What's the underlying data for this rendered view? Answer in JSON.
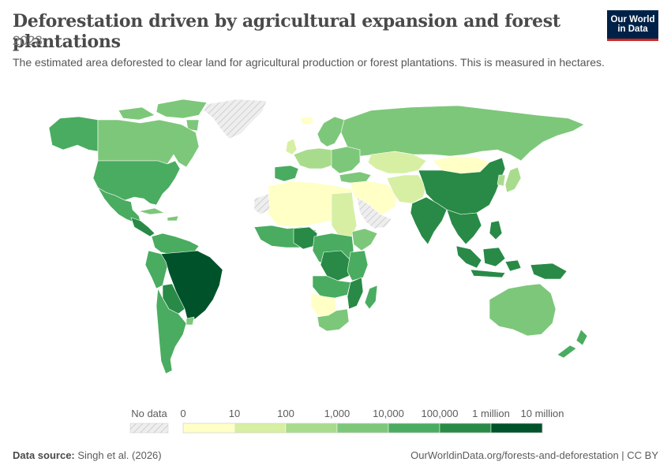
{
  "header": {
    "title": "Deforestation driven by agricultural expansion and forest plantations",
    "year": "2023",
    "subtitle": "The estimated area deforested to clear land for agricultural production or forest plantations. This is measured in hectares.",
    "logo_line1": "Our World",
    "logo_line2": "in Data"
  },
  "legend": {
    "no_data_label": "No data",
    "tick_labels": [
      "0",
      "10",
      "100",
      "1,000",
      "10,000",
      "100,000",
      "1 million",
      "10 million"
    ],
    "bin_colors": [
      "#ffffc6",
      "#d7efa3",
      "#a9db8d",
      "#7dc77a",
      "#4aac60",
      "#288a46",
      "#00522b"
    ]
  },
  "footer": {
    "source_label": "Data source:",
    "source_text": "Singh et al. (2026)",
    "link_text": "OurWorldinData.org/forests-and-deforestation | CC BY"
  },
  "colors": {
    "no_data": "#e6e6e6",
    "border": "#ffffff"
  }
}
